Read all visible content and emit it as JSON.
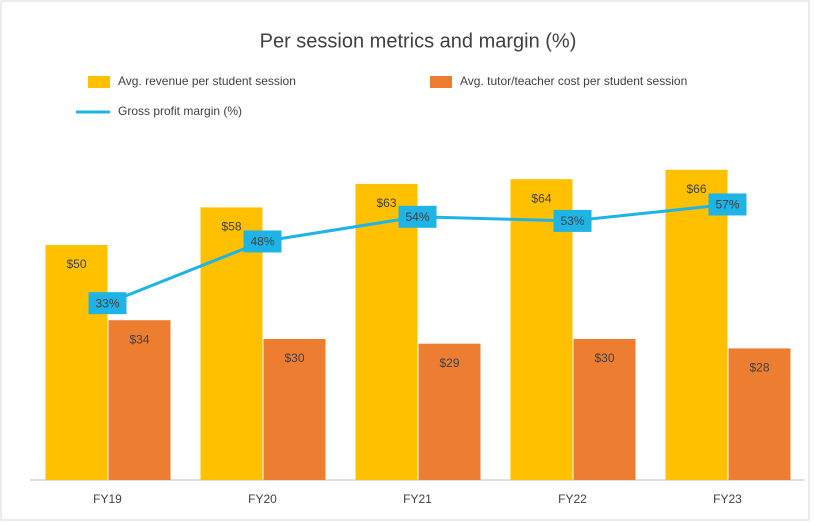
{
  "chart_data": {
    "type": "bar-line",
    "title": "Per session metrics and margin (%)",
    "categories": [
      "FY19",
      "FY20",
      "FY21",
      "FY22",
      "FY23"
    ],
    "series": [
      {
        "name": "Avg. revenue per student session",
        "type": "bar",
        "color": "#ffc000",
        "values": [
          50,
          58,
          63,
          64,
          66
        ],
        "value_labels": [
          "$50",
          "$58",
          "$63",
          "$64",
          "$66"
        ]
      },
      {
        "name": "Avg. tutor/teacher cost per student session",
        "type": "bar",
        "color": "#ed7d31",
        "values": [
          34,
          30,
          29,
          30,
          28
        ],
        "value_labels": [
          "$34",
          "$30",
          "$29",
          "$30",
          "$28"
        ]
      },
      {
        "name": "Gross profit margin (%)",
        "type": "line",
        "axis": "y2",
        "color": "#1eb4e6",
        "values": [
          33,
          48,
          54,
          53,
          57
        ],
        "value_labels": [
          "33%",
          "48%",
          "54%",
          "53%",
          "57%"
        ]
      }
    ],
    "ylim": [
      0,
      70
    ],
    "y2lim": [
      -10,
      70
    ],
    "grid": false
  }
}
